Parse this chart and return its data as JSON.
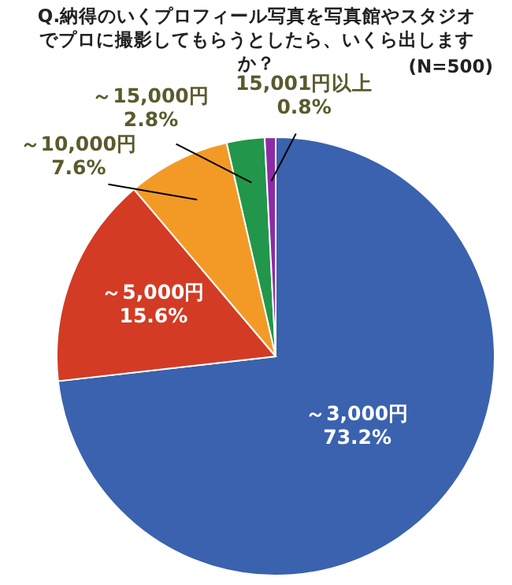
{
  "chart_data": {
    "type": "pie",
    "title": "Q.納得のいくプロフィール写真を写真館やスタジオでプロに撮影してもらうとしたら、いくら出しますか？",
    "subtitle": "(N=500)",
    "categories": [
      "～3,000円",
      "～5,000円",
      "～10,000円",
      "～15,000円",
      "15,001円以上"
    ],
    "values": [
      73.2,
      15.6,
      7.6,
      2.8,
      0.8
    ],
    "value_labels": [
      "73.2%",
      "15.6%",
      "7.6%",
      "2.8%",
      "0.8%"
    ],
    "colors": [
      "#3a62ae",
      "#d33b24",
      "#f39a26",
      "#22964a",
      "#8e2aa8"
    ]
  }
}
